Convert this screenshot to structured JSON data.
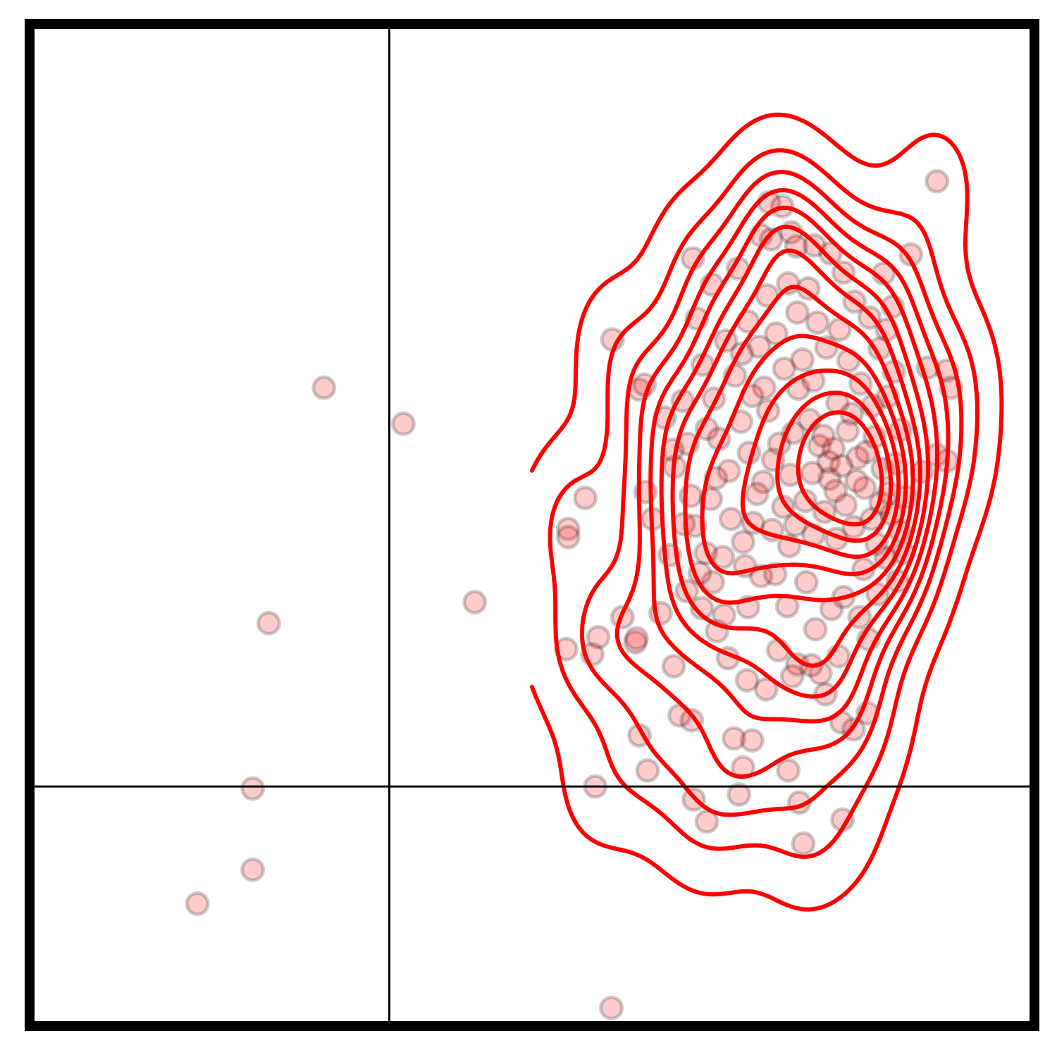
{
  "chart_data": {
    "type": "scatter",
    "title": "",
    "xlabel": "",
    "ylabel": "",
    "xlim": [
      0,
      100
    ],
    "ylim": [
      0,
      100
    ],
    "grid": false,
    "ticks_visible": false,
    "colors": {
      "points": "#ff0000",
      "point_edge": "#000000",
      "contours": "#ff0000",
      "quadrant_lines": "#000000",
      "frame": "#000000"
    },
    "quadrant_lines": {
      "x": 35.8,
      "y": 23.9
    },
    "density_contours": {
      "levels": 12,
      "peak": [
        80.0,
        57.0
      ]
    },
    "points": [
      [
        29.3,
        63.7
      ],
      [
        37.2,
        60.1
      ],
      [
        23.8,
        40.2
      ],
      [
        22.2,
        23.7
      ],
      [
        22.2,
        15.6
      ],
      [
        16.7,
        12.2
      ],
      [
        44.3,
        42.3
      ],
      [
        58.0,
        68.5
      ],
      [
        57.9,
        1.8
      ],
      [
        55.3,
        52.7
      ],
      [
        53.6,
        49.6
      ],
      [
        53.6,
        48.8
      ],
      [
        53.4,
        37.6
      ],
      [
        56.0,
        37.1
      ],
      [
        56.6,
        38.8
      ],
      [
        56.3,
        23.9
      ],
      [
        59.0,
        40.8
      ],
      [
        60.3,
        38.3
      ],
      [
        60.4,
        38.7
      ],
      [
        62.0,
        50.6
      ],
      [
        61.3,
        53.3
      ],
      [
        61.5,
        25.5
      ],
      [
        60.7,
        29.0
      ],
      [
        60.7,
        63.5
      ],
      [
        61.2,
        64.0
      ],
      [
        62.8,
        41.2
      ],
      [
        64.1,
        35.9
      ],
      [
        64.7,
        31.0
      ],
      [
        65.9,
        30.5
      ],
      [
        66.1,
        22.6
      ],
      [
        67.4,
        20.4
      ],
      [
        70.6,
        23.1
      ],
      [
        71.9,
        28.5
      ],
      [
        71.0,
        25.8
      ],
      [
        75.5,
        25.5
      ],
      [
        76.6,
        22.3
      ],
      [
        77.0,
        18.2
      ],
      [
        80.9,
        20.6
      ],
      [
        80.8,
        30.3
      ],
      [
        82.0,
        29.6
      ],
      [
        83.4,
        31.2
      ],
      [
        90.3,
        84.3
      ],
      [
        66.0,
        76.6
      ],
      [
        67.4,
        59.6
      ],
      [
        70.1,
        28.7
      ],
      [
        70.9,
        67.1
      ],
      [
        73.0,
        54.3
      ],
      [
        74.5,
        37.5
      ],
      [
        76.4,
        36.1
      ],
      [
        78.7,
        35.2
      ],
      [
        79.2,
        33.1
      ],
      [
        64.2,
        55.8
      ],
      [
        65.0,
        62.4
      ],
      [
        63.2,
        60.7
      ],
      [
        64.0,
        57.5
      ],
      [
        65.5,
        58.1
      ],
      [
        65.8,
        52.9
      ],
      [
        66.2,
        49.9
      ],
      [
        67.3,
        47.2
      ],
      [
        68.0,
        44.3
      ],
      [
        69.1,
        41.0
      ],
      [
        71.5,
        41.8
      ],
      [
        72.8,
        44.9
      ],
      [
        75.6,
        47.9
      ],
      [
        75.4,
        41.9
      ],
      [
        78.2,
        39.6
      ],
      [
        79.8,
        41.6
      ],
      [
        83.0,
        45.6
      ],
      [
        84.3,
        48.1
      ],
      [
        85.8,
        51.1
      ],
      [
        86.6,
        49.4
      ],
      [
        87.2,
        52.8
      ],
      [
        88.8,
        55.3
      ],
      [
        89.4,
        65.7
      ],
      [
        90.3,
        57.0
      ],
      [
        91.3,
        56.4
      ],
      [
        91.3,
        65.4
      ],
      [
        91.7,
        63.7
      ],
      [
        85.0,
        75.1
      ],
      [
        85.9,
        71.8
      ],
      [
        85.3,
        69.5
      ],
      [
        87.7,
        77.0
      ],
      [
        66.4,
        70.6
      ],
      [
        67.9,
        74.0
      ],
      [
        70.5,
        75.6
      ],
      [
        72.8,
        78.9
      ],
      [
        73.6,
        82.2
      ],
      [
        73.8,
        78.5
      ],
      [
        74.9,
        81.8
      ],
      [
        75.8,
        79.2
      ],
      [
        76.3,
        77.8
      ],
      [
        78.1,
        77.9
      ],
      [
        79.7,
        77.1
      ],
      [
        81.0,
        75.2
      ],
      [
        82.1,
        72.3
      ],
      [
        83.6,
        70.7
      ],
      [
        84.6,
        67.6
      ],
      [
        67.0,
        66.0
      ],
      [
        68.1,
        62.6
      ],
      [
        69.3,
        68.4
      ],
      [
        70.2,
        64.9
      ],
      [
        71.5,
        70.3
      ],
      [
        72.6,
        67.8
      ],
      [
        73.4,
        72.9
      ],
      [
        74.3,
        69.1
      ],
      [
        75.5,
        74.1
      ],
      [
        76.4,
        71.2
      ],
      [
        77.5,
        73.6
      ],
      [
        78.4,
        70.2
      ],
      [
        79.3,
        67.7
      ],
      [
        80.6,
        69.5
      ],
      [
        81.5,
        66.4
      ],
      [
        82.7,
        64.1
      ],
      [
        83.9,
        61.9
      ],
      [
        68.6,
        58.6
      ],
      [
        69.6,
        55.4
      ],
      [
        70.8,
        60.3
      ],
      [
        71.6,
        57.2
      ],
      [
        72.4,
        53.1
      ],
      [
        73.5,
        61.4
      ],
      [
        74.6,
        58.1
      ],
      [
        75.7,
        55.0
      ],
      [
        76.5,
        63.6
      ],
      [
        77.6,
        60.5
      ],
      [
        78.6,
        57.9
      ],
      [
        79.6,
        54.6
      ],
      [
        80.4,
        62.2
      ],
      [
        81.4,
        59.4
      ],
      [
        82.4,
        56.7
      ],
      [
        83.1,
        53.7
      ],
      [
        84.1,
        58.8
      ],
      [
        84.9,
        55.6
      ],
      [
        85.4,
        62.8
      ],
      [
        69.8,
        50.6
      ],
      [
        71.0,
        48.3
      ],
      [
        72.0,
        50.2
      ],
      [
        73.9,
        49.5
      ],
      [
        75.0,
        51.8
      ],
      [
        76.2,
        50.0
      ],
      [
        77.2,
        52.4
      ],
      [
        78.0,
        49.0
      ],
      [
        79.1,
        51.3
      ],
      [
        80.3,
        48.6
      ],
      [
        81.2,
        52.0
      ],
      [
        82.0,
        49.8
      ],
      [
        83.8,
        50.6
      ],
      [
        85.5,
        53.2
      ],
      [
        86.2,
        56.1
      ],
      [
        86.7,
        59.5
      ],
      [
        86.0,
        65.3
      ],
      [
        84.4,
        43.1
      ],
      [
        82.6,
        40.8
      ],
      [
        81.0,
        42.8
      ],
      [
        77.3,
        44.3
      ],
      [
        74.2,
        45.1
      ],
      [
        71.2,
        45.9
      ],
      [
        69.0,
        46.8
      ],
      [
        66.7,
        45.2
      ],
      [
        67.8,
        52.6
      ],
      [
        68.3,
        54.7
      ],
      [
        79.5,
        56.3
      ],
      [
        80.0,
        57.6
      ],
      [
        80.8,
        55.9
      ],
      [
        79.0,
        58.9
      ],
      [
        81.8,
        61.1
      ],
      [
        78.0,
        64.4
      ],
      [
        76.9,
        66.5
      ],
      [
        75.1,
        65.6
      ],
      [
        73.1,
        63.7
      ],
      [
        71.9,
        62.9
      ],
      [
        74.0,
        56.5
      ],
      [
        76.0,
        59.2
      ],
      [
        77.9,
        55.2
      ],
      [
        80.2,
        53.4
      ],
      [
        82.3,
        54.4
      ],
      [
        83.3,
        57.3
      ],
      [
        84.7,
        52.2
      ],
      [
        85.2,
        46.7
      ],
      [
        87.0,
        47.2
      ],
      [
        86.4,
        44.4
      ],
      [
        83.5,
        38.6
      ],
      [
        80.5,
        36.9
      ],
      [
        77.8,
        36.0
      ],
      [
        75.9,
        34.9
      ],
      [
        73.3,
        33.6
      ],
      [
        71.4,
        34.5
      ],
      [
        69.5,
        36.7
      ],
      [
        68.4,
        39.4
      ],
      [
        66.9,
        41.7
      ],
      [
        65.4,
        43.4
      ],
      [
        63.7,
        47.0
      ],
      [
        65.1,
        50.1
      ]
    ]
  }
}
